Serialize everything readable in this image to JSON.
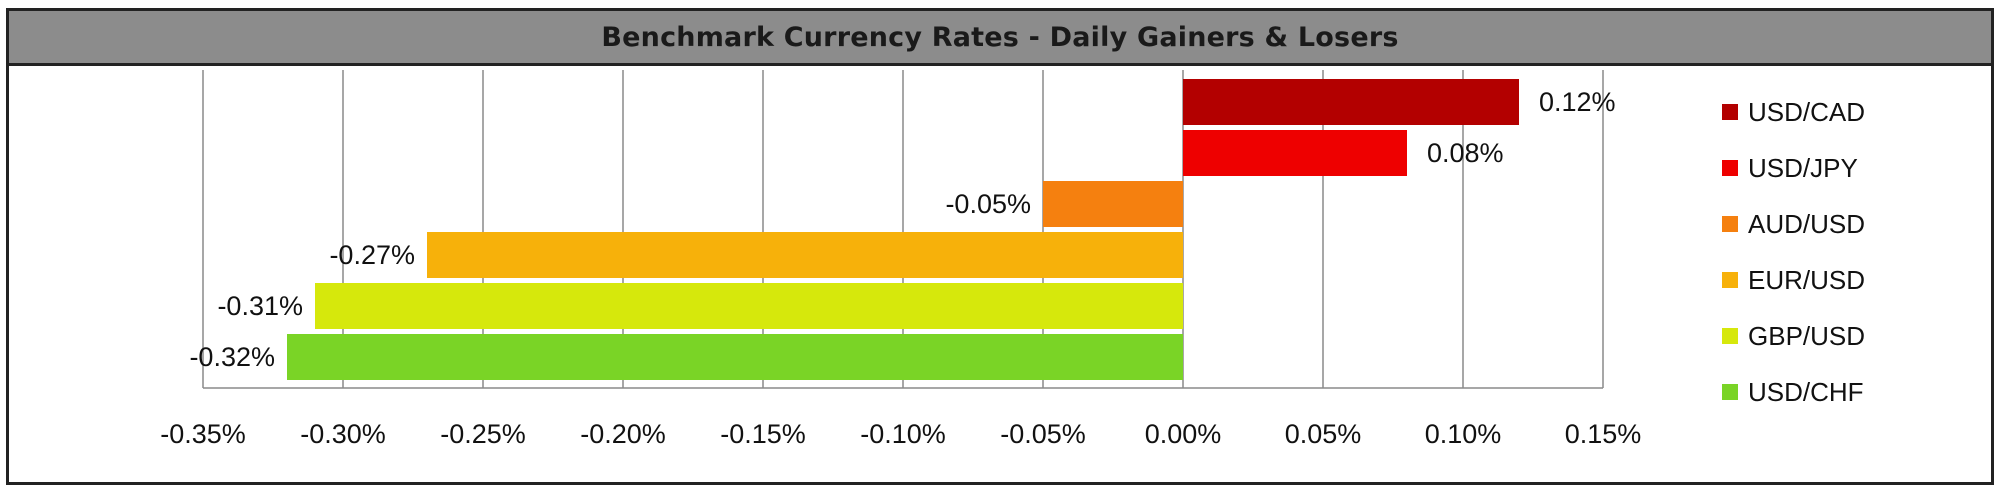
{
  "title": "Benchmark Currency Rates - Daily Gainers & Losers",
  "chart_data": {
    "type": "bar",
    "orientation": "horizontal",
    "title": "Benchmark Currency Rates - Daily Gainers & Losers",
    "xlabel": "",
    "ylabel": "",
    "xlim": [
      -0.35,
      0.15
    ],
    "x_ticks": [
      -0.35,
      -0.3,
      -0.25,
      -0.2,
      -0.15,
      -0.1,
      -0.05,
      0.0,
      0.05,
      0.1,
      0.15
    ],
    "x_tick_labels": [
      "-0.35%",
      "-0.30%",
      "-0.25%",
      "-0.20%",
      "-0.15%",
      "-0.10%",
      "-0.05%",
      "0.00%",
      "0.05%",
      "0.10%",
      "0.15%"
    ],
    "grid": true,
    "legend_position": "right",
    "categories": [
      "USD/CAD",
      "USD/JPY",
      "AUD/USD",
      "EUR/USD",
      "GBP/USD",
      "USD/CHF"
    ],
    "values": [
      0.12,
      0.08,
      -0.05,
      -0.27,
      -0.31,
      -0.32
    ],
    "value_labels": [
      "0.12%",
      "0.08%",
      "-0.05%",
      "-0.27%",
      "-0.31%",
      "-0.32%"
    ],
    "colors": [
      "#b30000",
      "#ee0000",
      "#f5800f",
      "#f7b10a",
      "#d6e80c",
      "#7ad426"
    ]
  }
}
